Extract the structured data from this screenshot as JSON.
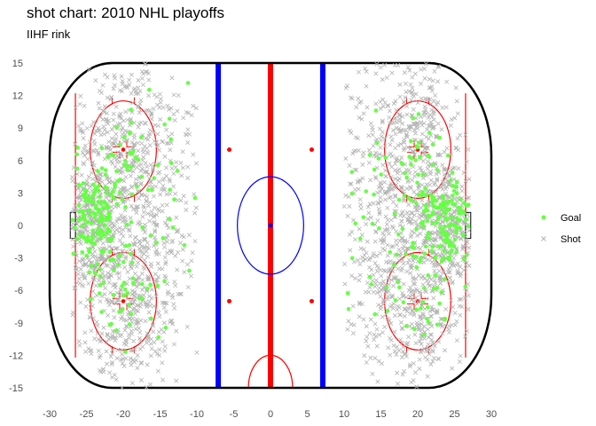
{
  "chart_data": {
    "type": "scatter",
    "title": "shot chart: 2010 NHL playoffs",
    "subtitle": "IIHF rink",
    "xlim": [
      -30,
      30
    ],
    "ylim": [
      -15,
      15
    ],
    "x_ticks": [
      -30,
      -25,
      -20,
      -15,
      -10,
      -5,
      0,
      5,
      10,
      15,
      20,
      25,
      30
    ],
    "y_ticks": [
      15,
      12,
      9,
      6,
      3,
      0,
      -3,
      -6,
      -9,
      -12,
      -15
    ],
    "legend_position": "right",
    "colors": {
      "goal": "#66ff44",
      "shot": "#b3b3b3",
      "blue_line": "#0000ff",
      "red_line": "#ff0000",
      "boards": "#000000"
    },
    "series": [
      {
        "name": "Goal",
        "marker": "dot",
        "clusters": [
          {
            "cx": -24,
            "cy": 0.5,
            "sx": 1.8,
            "sy": 2.4,
            "n": 140
          },
          {
            "cx": -20,
            "cy": 6.5,
            "sx": 2.4,
            "sy": 2.2,
            "n": 28
          },
          {
            "cx": -20,
            "cy": -6.5,
            "sx": 2.4,
            "sy": 2.2,
            "n": 28
          },
          {
            "cx": -17,
            "cy": 1,
            "sx": 3,
            "sy": 5,
            "n": 35
          },
          {
            "cx": 23.5,
            "cy": 0.5,
            "sx": 1.8,
            "sy": 2.4,
            "n": 140
          },
          {
            "cx": 20,
            "cy": 6.5,
            "sx": 2.4,
            "sy": 2.2,
            "n": 28
          },
          {
            "cx": 20,
            "cy": -6.5,
            "sx": 2.4,
            "sy": 2.2,
            "n": 28
          },
          {
            "cx": 16,
            "cy": 1,
            "sx": 3.5,
            "sy": 5,
            "n": 35
          }
        ]
      },
      {
        "name": "Shot",
        "marker": "cross",
        "clusters": [
          {
            "cx": -24,
            "cy": 0,
            "sx": 2.2,
            "sy": 3,
            "n": 300
          },
          {
            "cx": -18,
            "cy": 0,
            "sx": 4.5,
            "sy": 7.5,
            "n": 650
          },
          {
            "cx": -20,
            "cy": 9,
            "sx": 3,
            "sy": 3,
            "n": 150
          },
          {
            "cx": -20,
            "cy": -9,
            "sx": 3,
            "sy": 3,
            "n": 150
          },
          {
            "cx": 24,
            "cy": 0,
            "sx": 2.2,
            "sy": 3,
            "n": 300
          },
          {
            "cx": 17.5,
            "cy": 0,
            "sx": 4.5,
            "sy": 7.5,
            "n": 650
          },
          {
            "cx": 20,
            "cy": 9,
            "sx": 3,
            "sy": 3,
            "n": 150
          },
          {
            "cx": 20,
            "cy": -9,
            "sx": 3,
            "sy": 3,
            "n": 150
          }
        ]
      }
    ]
  }
}
